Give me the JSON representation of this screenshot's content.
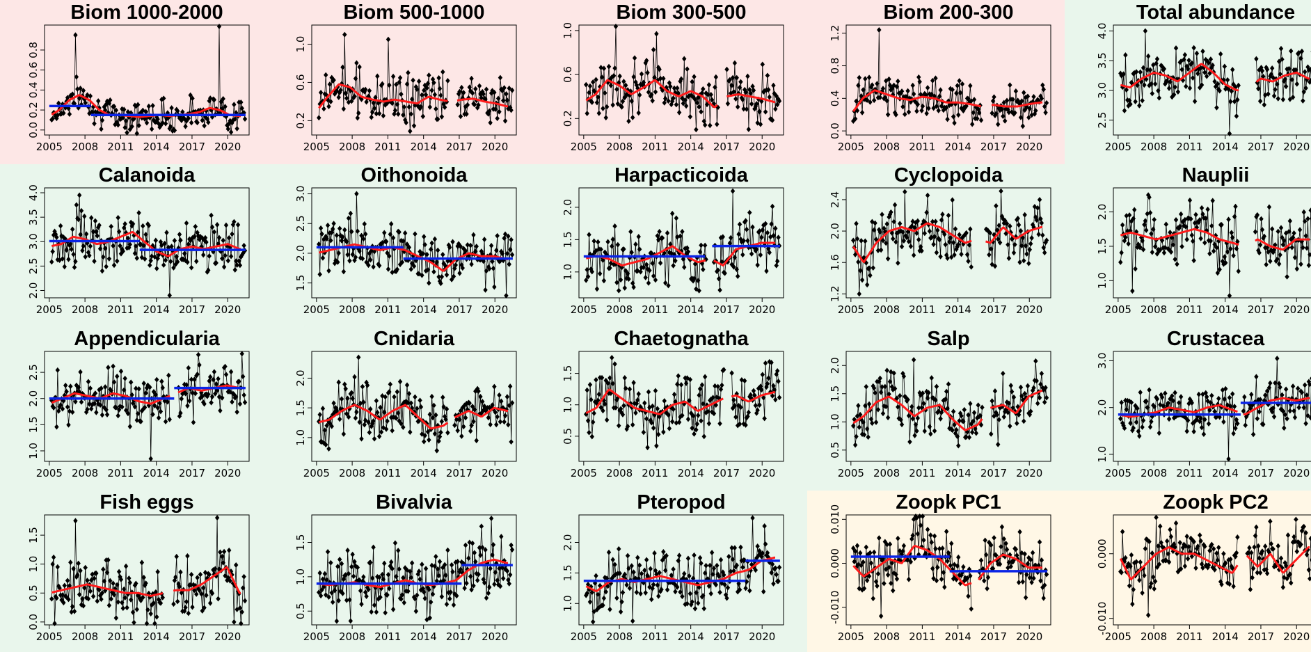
{
  "colors": {
    "biomass_bg": "#fde7e6",
    "abundance_bg": "#e9f6ec",
    "pc_bg": "#fff7e6",
    "points": "#000000",
    "trend": "#ff1a1a",
    "regime": "#0a24e6"
  },
  "year_ticks": [
    "2005",
    "2008",
    "2011",
    "2014",
    "2017",
    "2020"
  ],
  "chart_data": [
    {
      "type": "scatter",
      "title": "Biom 1000-2000",
      "y_ticks": [
        "0.0",
        "0.2",
        "0.4",
        "0.6",
        "0.8"
      ],
      "ylim": [
        -0.05,
        1.05
      ],
      "trend_values": [
        0.14,
        0.2,
        0.3,
        0.35,
        0.3,
        0.2,
        0.15,
        0.15,
        0.14,
        0.13,
        0.14,
        0.15,
        0.14,
        0.15,
        0.16,
        0.18,
        0.22,
        0.2,
        0.15,
        0.14
      ],
      "point_mean": 0.16,
      "point_spread": 0.12,
      "spikes": [
        [
          2007.2,
          0.95
        ],
        [
          2019.3,
          1.04
        ]
      ],
      "gaps": [],
      "regimes": [
        [
          2005,
          2008.5,
          0.24
        ],
        [
          2008.5,
          2021.5,
          0.15
        ]
      ]
    },
    {
      "type": "scatter",
      "title": "Biom 500-1000",
      "y_ticks": [
        "0.2",
        "0.6",
        "1.0"
      ],
      "ylim": [
        0.05,
        1.2
      ],
      "trend_values": [
        0.3,
        0.45,
        0.58,
        0.55,
        0.45,
        0.42,
        0.4,
        0.42,
        0.4,
        0.38,
        0.45,
        0.42,
        0.4,
        0.42,
        0.43,
        0.4,
        0.38,
        0.35
      ],
      "point_mean": 0.42,
      "point_spread": 0.2,
      "spikes": [
        [
          2007.4,
          1.1
        ],
        [
          2011,
          1.05
        ]
      ],
      "gaps": [
        [
          2016.1,
          2016.8
        ]
      ],
      "regimes": []
    },
    {
      "type": "scatter",
      "title": "Biom 300-500",
      "y_ticks": [
        "0.2",
        "0.6",
        "1.0"
      ],
      "ylim": [
        0.05,
        1.05
      ],
      "trend_values": [
        0.35,
        0.42,
        0.55,
        0.5,
        0.42,
        0.48,
        0.55,
        0.45,
        0.4,
        0.45,
        0.4,
        0.3,
        0.4,
        0.42,
        0.4,
        0.38,
        0.35
      ],
      "point_mean": 0.42,
      "point_spread": 0.2,
      "spikes": [
        [
          2007.7,
          1.05
        ],
        [
          2011.1,
          0.97
        ]
      ],
      "gaps": [
        [
          2016.3,
          2017
        ]
      ],
      "regimes": []
    },
    {
      "type": "scatter",
      "title": "Biom 200-300",
      "y_ticks": [
        "0.0",
        "0.4",
        "0.8",
        "1.2"
      ],
      "ylim": [
        -0.05,
        1.3
      ],
      "trend_values": [
        0.2,
        0.4,
        0.5,
        0.45,
        0.4,
        0.38,
        0.42,
        0.4,
        0.35,
        0.35,
        0.33,
        0.3,
        0.32,
        0.3,
        0.3,
        0.33,
        0.35
      ],
      "point_mean": 0.36,
      "point_spread": 0.18,
      "spikes": [
        [
          2007.4,
          1.24
        ]
      ],
      "gaps": [
        [
          2016,
          2016.8
        ]
      ],
      "regimes": []
    },
    {
      "type": "scatter",
      "title": "Total abundance",
      "y_ticks": [
        "2.5",
        "3.0",
        "3.5",
        "4.0"
      ],
      "ylim": [
        2.25,
        4.1
      ],
      "trend_values": [
        3.1,
        3.05,
        3.2,
        3.3,
        3.25,
        3.15,
        3.3,
        3.45,
        3.3,
        3.1,
        3.0,
        3.05,
        3.2,
        3.15,
        3.25,
        3.3,
        3.2
      ],
      "point_mean": 3.2,
      "point_spread": 0.35,
      "spikes": [
        [
          2007.3,
          4.0
        ],
        [
          2014.4,
          2.25
        ]
      ],
      "gaps": [
        [
          2015.2,
          2016.6
        ]
      ],
      "regimes": []
    },
    {
      "type": "scatter",
      "title": "Calanoida",
      "y_ticks": [
        "2.0",
        "2.5",
        "3.0",
        "3.5",
        "4.0"
      ],
      "ylim": [
        1.85,
        4.1
      ],
      "trend_values": [
        2.9,
        2.95,
        3.1,
        3.05,
        2.95,
        3.0,
        3.1,
        3.2,
        3.0,
        2.8,
        2.7,
        2.85,
        2.9,
        2.85,
        2.9,
        2.95,
        2.85
      ],
      "point_mean": 2.9,
      "point_spread": 0.4,
      "spikes": [
        [
          2007.5,
          3.95
        ],
        [
          2015.1,
          1.9
        ]
      ],
      "gaps": [],
      "regimes": [
        [
          2005,
          2012.6,
          3.01
        ],
        [
          2012.6,
          2021.5,
          2.83
        ]
      ]
    },
    {
      "type": "scatter",
      "title": "Oithonoida",
      "y_ticks": [
        "1.5",
        "2.0",
        "2.5",
        "3.0"
      ],
      "ylim": [
        1.25,
        3.1
      ],
      "trend_values": [
        2.0,
        2.05,
        2.1,
        2.15,
        2.1,
        2.05,
        2.1,
        2.05,
        1.95,
        1.85,
        1.7,
        1.9,
        2.0,
        1.95,
        1.95,
        1.9
      ],
      "point_mean": 2.0,
      "point_spread": 0.35,
      "spikes": [
        [
          2008.4,
          3.0
        ]
      ],
      "gaps": [],
      "regimes": [
        [
          2005,
          2012.3,
          2.1
        ],
        [
          2012.3,
          2021.5,
          1.91
        ]
      ]
    },
    {
      "type": "scatter",
      "title": "Harpacticoida",
      "y_ticks": [
        "1.0",
        "1.5",
        "2.0"
      ],
      "ylim": [
        0.6,
        2.3
      ],
      "trend_values": [
        1.2,
        1.25,
        1.2,
        1.1,
        1.15,
        1.2,
        1.3,
        1.4,
        1.25,
        1.15,
        1.2,
        1.1,
        1.35,
        1.4,
        1.45,
        1.45
      ],
      "point_mean": 1.25,
      "point_spread": 0.35,
      "spikes": [
        [
          2017.5,
          2.25
        ]
      ],
      "gaps": [
        [
          2015.3,
          2015.9
        ]
      ],
      "regimes": [
        [
          2005,
          2015.2,
          1.24
        ],
        [
          2015.8,
          2021.5,
          1.4
        ]
      ]
    },
    {
      "type": "scatter",
      "title": "Cyclopoida",
      "y_ticks": [
        "1.2",
        "1.6",
        "2.0",
        "2.4"
      ],
      "ylim": [
        1.15,
        2.55
      ],
      "trend_values": [
        1.85,
        1.6,
        1.85,
        2.0,
        2.05,
        2.0,
        2.1,
        2.05,
        1.95,
        1.85,
        1.9,
        1.85,
        2.05,
        1.9,
        2.0,
        2.05
      ],
      "point_mean": 1.95,
      "point_spread": 0.3,
      "spikes": [
        [
          2005.7,
          1.2
        ],
        [
          2009.5,
          2.5
        ]
      ],
      "gaps": [
        [
          2015.2,
          2016.3
        ]
      ],
      "regimes": []
    },
    {
      "type": "scatter",
      "title": "Nauplii",
      "y_ticks": [
        "1.0",
        "1.5",
        "2.0"
      ],
      "ylim": [
        0.75,
        2.35
      ],
      "trend_values": [
        1.65,
        1.7,
        1.65,
        1.6,
        1.65,
        1.7,
        1.75,
        1.7,
        1.6,
        1.55,
        1.5,
        1.6,
        1.5,
        1.45,
        1.6,
        1.6
      ],
      "point_mean": 1.6,
      "point_spread": 0.35,
      "spikes": [
        [
          2006.2,
          0.85
        ],
        [
          2014.4,
          0.78
        ]
      ],
      "gaps": [
        [
          2015.2,
          2016.5
        ]
      ],
      "regimes": []
    },
    {
      "type": "scatter",
      "title": "Appendicularia",
      "y_ticks": [
        "1.0",
        "1.5",
        "2.0",
        "2.5"
      ],
      "ylim": [
        0.8,
        2.9
      ],
      "trend_values": [
        1.9,
        2.0,
        2.1,
        2.05,
        2.0,
        2.1,
        2.05,
        1.95,
        1.9,
        2.0,
        2.1,
        2.2,
        2.15,
        2.2,
        2.25,
        2.2
      ],
      "point_mean": 2.05,
      "point_spread": 0.4,
      "spikes": [
        [
          2013.5,
          0.85
        ]
      ],
      "gaps": [
        [
          2015.2,
          2015.8
        ]
      ],
      "regimes": [
        [
          2005,
          2015.5,
          2.0
        ],
        [
          2015.5,
          2021.5,
          2.2
        ]
      ]
    },
    {
      "type": "scatter",
      "title": "Cnidaria",
      "y_ticks": [
        "1.0",
        "1.5",
        "2.0"
      ],
      "ylim": [
        0.6,
        2.45
      ],
      "trend_values": [
        1.25,
        1.3,
        1.45,
        1.55,
        1.45,
        1.3,
        1.45,
        1.55,
        1.35,
        1.15,
        1.2,
        1.35,
        1.45,
        1.35,
        1.5,
        1.45
      ],
      "point_mean": 1.4,
      "point_spread": 0.35,
      "spikes": [
        [
          2008.5,
          2.35
        ]
      ],
      "gaps": [
        [
          2016.1,
          2016.6
        ]
      ],
      "regimes": []
    },
    {
      "type": "scatter",
      "title": "Chaetognatha",
      "y_ticks": [
        "0.5",
        "1.0",
        "1.5"
      ],
      "ylim": [
        0.1,
        1.85
      ],
      "trend_values": [
        0.85,
        0.95,
        1.25,
        1.1,
        0.95,
        0.9,
        0.85,
        1.0,
        1.05,
        0.9,
        1.0,
        1.1,
        1.15,
        1.05,
        1.15,
        1.2
      ],
      "point_mean": 1.0,
      "point_spread": 0.4,
      "spikes": [
        [
          2007.4,
          1.75
        ]
      ],
      "gaps": [
        [
          2016.8,
          2017.4
        ]
      ],
      "regimes": []
    },
    {
      "type": "scatter",
      "title": "Salp",
      "y_ticks": [
        "0.5",
        "1.0",
        "1.5",
        "2.0"
      ],
      "ylim": [
        0.3,
        2.25
      ],
      "trend_values": [
        0.95,
        1.1,
        1.35,
        1.45,
        1.3,
        1.1,
        1.25,
        1.3,
        1.05,
        0.85,
        0.95,
        1.25,
        1.3,
        1.15,
        1.45,
        1.55
      ],
      "point_mean": 1.2,
      "point_spread": 0.4,
      "spikes": [
        [
          2010.3,
          2.1
        ],
        [
          2017.4,
          0.6
        ]
      ],
      "gaps": [
        [
          2016.1,
          2016.7
        ]
      ],
      "regimes": []
    },
    {
      "type": "scatter",
      "title": "Crustacea",
      "y_ticks": [
        "1.0",
        "2.0",
        "3.0"
      ],
      "ylim": [
        0.85,
        3.2
      ],
      "trend_values": [
        1.85,
        1.8,
        1.85,
        1.9,
        2.0,
        1.95,
        1.9,
        2.0,
        2.05,
        1.95,
        1.85,
        2.0,
        2.15,
        2.2,
        2.15,
        2.2
      ],
      "point_mean": 1.95,
      "point_spread": 0.4,
      "spikes": [
        [
          2018.4,
          3.05
        ],
        [
          2014.3,
          0.9
        ]
      ],
      "gaps": [
        [
          2015.1,
          2015.5
        ]
      ],
      "regimes": [
        [
          2005,
          2015.3,
          1.85
        ],
        [
          2015.3,
          2021.5,
          2.1
        ]
      ]
    },
    {
      "type": "scatter",
      "title": "Fish eggs",
      "y_ticks": [
        "0.0",
        "0.5",
        "1.0",
        "1.5"
      ],
      "ylim": [
        -0.05,
        1.85
      ],
      "trend_values": [
        0.5,
        0.55,
        0.6,
        0.65,
        0.6,
        0.55,
        0.5,
        0.5,
        0.45,
        0.5,
        0.55,
        0.55,
        0.65,
        0.8,
        0.95,
        0.5
      ],
      "point_mean": 0.55,
      "point_spread": 0.4,
      "spikes": [
        [
          2007.2,
          1.75
        ],
        [
          2019.1,
          1.8
        ],
        [
          2020.5,
          0.0
        ]
      ],
      "gaps": [
        [
          2014.6,
          2015.4
        ]
      ],
      "regimes": []
    },
    {
      "type": "scatter",
      "title": "Bivalvia",
      "y_ticks": [
        "0.5",
        "1.0",
        "1.5"
      ],
      "ylim": [
        0.3,
        1.9
      ],
      "trend_values": [
        0.9,
        0.88,
        0.9,
        0.92,
        0.88,
        0.85,
        0.9,
        0.95,
        0.9,
        0.88,
        0.9,
        0.95,
        1.1,
        1.2,
        1.25,
        1.2
      ],
      "point_mean": 1.0,
      "point_spread": 0.35,
      "spikes": [
        [
          2019.7,
          1.85
        ]
      ],
      "gaps": [],
      "regimes": [
        [
          2005,
          2017.2,
          0.9
        ],
        [
          2017.2,
          2021.5,
          1.17
        ]
      ]
    },
    {
      "type": "scatter",
      "title": "Pteropod",
      "y_ticks": [
        "1.0",
        "1.5",
        "2.0"
      ],
      "ylim": [
        0.65,
        2.45
      ],
      "trend_values": [
        1.3,
        1.2,
        1.35,
        1.4,
        1.35,
        1.4,
        1.45,
        1.4,
        1.35,
        1.3,
        1.35,
        1.4,
        1.5,
        1.55,
        1.7,
        1.75
      ],
      "point_mean": 1.4,
      "point_spread": 0.35,
      "spikes": [
        [
          2019.2,
          2.4
        ],
        [
          2005.8,
          0.7
        ]
      ],
      "gaps": [],
      "regimes": [
        [
          2005,
          2018.6,
          1.37
        ],
        [
          2018.6,
          2021.5,
          1.7
        ]
      ]
    },
    {
      "type": "scatter",
      "title": "Zoopk PC1",
      "y_ticks": [
        "-0.010",
        "0.000",
        "0.010"
      ],
      "ylim": [
        -0.014,
        0.011
      ],
      "trend_values": [
        0.0,
        -0.003,
        -0.001,
        0.001,
        0.0,
        0.004,
        0.003,
        0.001,
        -0.002,
        -0.005,
        -0.004,
        0.0,
        0.002,
        0.001,
        -0.001,
        -0.001
      ],
      "point_mean": 0.0,
      "point_spread": 0.005,
      "spikes": [
        [
          2007.5,
          -0.012
        ],
        [
          2010.3,
          0.01
        ]
      ],
      "gaps": [
        [
          2015.2,
          2015.7
        ]
      ],
      "regimes": [
        [
          2005,
          2013.3,
          0.0015
        ],
        [
          2013.3,
          2021.5,
          -0.0018
        ]
      ]
    },
    {
      "type": "scatter",
      "title": "Zoopk PC2",
      "y_ticks": [
        "-0.010",
        "0.000"
      ],
      "ylim": [
        -0.011,
        0.006
      ],
      "trend_values": [
        0.0,
        -0.004,
        -0.002,
        0.0,
        0.001,
        0.0,
        0.0,
        -0.001,
        -0.002,
        -0.003,
        0.0,
        -0.002,
        0.0,
        -0.003,
        -0.001,
        0.001
      ],
      "point_mean": 0.0,
      "point_spread": 0.0035,
      "spikes": [
        [
          2007.5,
          -0.0095
        ],
        [
          2017.8,
          0.005
        ]
      ],
      "gaps": [
        [
          2015.1,
          2015.8
        ]
      ],
      "regimes": []
    }
  ]
}
